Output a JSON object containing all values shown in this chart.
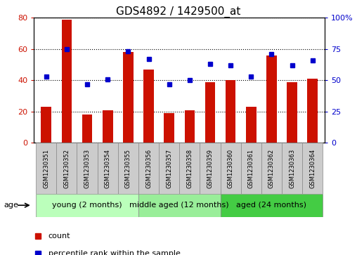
{
  "title": "GDS4892 / 1429500_at",
  "samples": [
    "GSM1230351",
    "GSM1230352",
    "GSM1230353",
    "GSM1230354",
    "GSM1230355",
    "GSM1230356",
    "GSM1230357",
    "GSM1230358",
    "GSM1230359",
    "GSM1230360",
    "GSM1230361",
    "GSM1230362",
    "GSM1230363",
    "GSM1230364"
  ],
  "counts": [
    23,
    79,
    18,
    21,
    58,
    47,
    19,
    21,
    39,
    40,
    23,
    56,
    39,
    41
  ],
  "percentiles": [
    53,
    75,
    47,
    51,
    73,
    67,
    47,
    50,
    63,
    62,
    53,
    71,
    62,
    66
  ],
  "bar_color": "#cc1100",
  "dot_color": "#0000cc",
  "left_ylim": [
    0,
    80
  ],
  "right_ylim": [
    0,
    100
  ],
  "left_yticks": [
    0,
    20,
    40,
    60,
    80
  ],
  "right_yticks": [
    0,
    25,
    50,
    75,
    100
  ],
  "right_yticklabels": [
    "0",
    "25",
    "50",
    "75",
    "100%"
  ],
  "groups": [
    {
      "label": "young (2 months)",
      "start": 0,
      "end": 5,
      "color": "#bbffbb"
    },
    {
      "label": "middle aged (12 months)",
      "start": 5,
      "end": 9,
      "color": "#99ee99"
    },
    {
      "label": "aged (24 months)",
      "start": 9,
      "end": 14,
      "color": "#44cc44"
    }
  ],
  "age_label": "age",
  "legend_count_label": "count",
  "legend_percentile_label": "percentile rank within the sample",
  "bar_width": 0.5,
  "grid_color": "#000000",
  "tick_label_color_left": "#cc1100",
  "tick_label_color_right": "#0000cc",
  "sample_box_color": "#cccccc",
  "title_fontsize": 11,
  "axis_fontsize": 8,
  "legend_fontsize": 8,
  "group_label_fontsize": 8,
  "sample_fontsize": 6
}
